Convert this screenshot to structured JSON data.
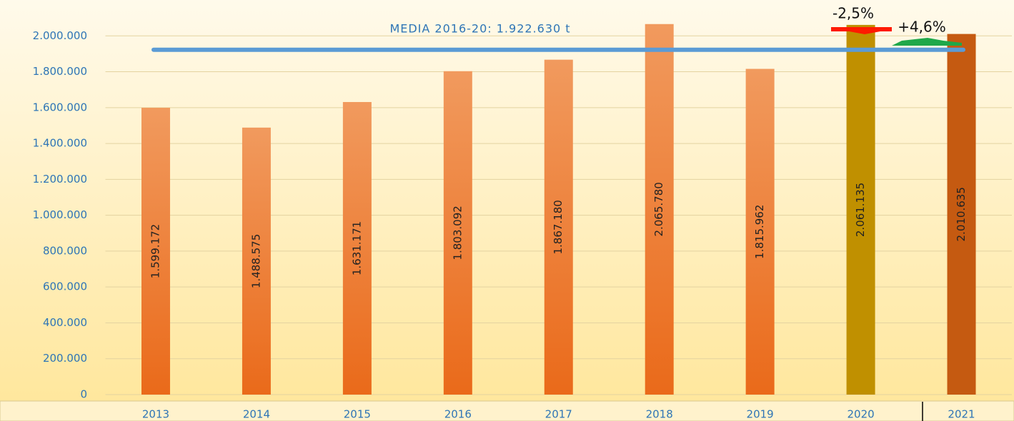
{
  "chart_data": {
    "type": "bar",
    "categories": [
      "2013",
      "2014",
      "2015",
      "2016",
      "2017",
      "2018",
      "2019",
      "2020",
      "2021"
    ],
    "values": [
      1599172,
      1488575,
      1631171,
      1803092,
      1867180,
      2065780,
      1815962,
      2061135,
      2010635
    ],
    "value_labels": [
      "1.599.172",
      "1.488.575",
      "1.631.171",
      "1.803.092",
      "1.867.180",
      "2.065.780",
      "1.815.962",
      "2.061.135",
      "2.010.635"
    ],
    "colors": [
      "orange",
      "orange",
      "orange",
      "orange",
      "orange",
      "orange",
      "orange",
      "#c09000",
      "#c55a11"
    ],
    "ylim": [
      0,
      2200000
    ],
    "yticks": [
      0,
      {
        "value": 200000,
        "label": "200.000"
      },
      {
        "value": 400000,
        "label": "400.000"
      },
      {
        "value": 600000,
        "label": "600.000"
      },
      {
        "value": 800000,
        "label": "800.000"
      },
      {
        "value": 1000000,
        "label": "1.000.000"
      },
      {
        "value": 1200000,
        "label": "1.200.000"
      },
      {
        "value": 1400000,
        "label": "1.400.000"
      },
      {
        "value": 1600000,
        "label": "1.600.000"
      },
      {
        "value": 1800000,
        "label": "1.800.000"
      },
      {
        "value": 2000000,
        "label": "2.000.000"
      }
    ],
    "grid": true,
    "mean": {
      "value": 1922630,
      "label": "MEDIA 2016-20: 1.922.630 t",
      "color": "#5b9bd5"
    },
    "annotations": [
      "-2,5%",
      "+4,6%"
    ]
  }
}
